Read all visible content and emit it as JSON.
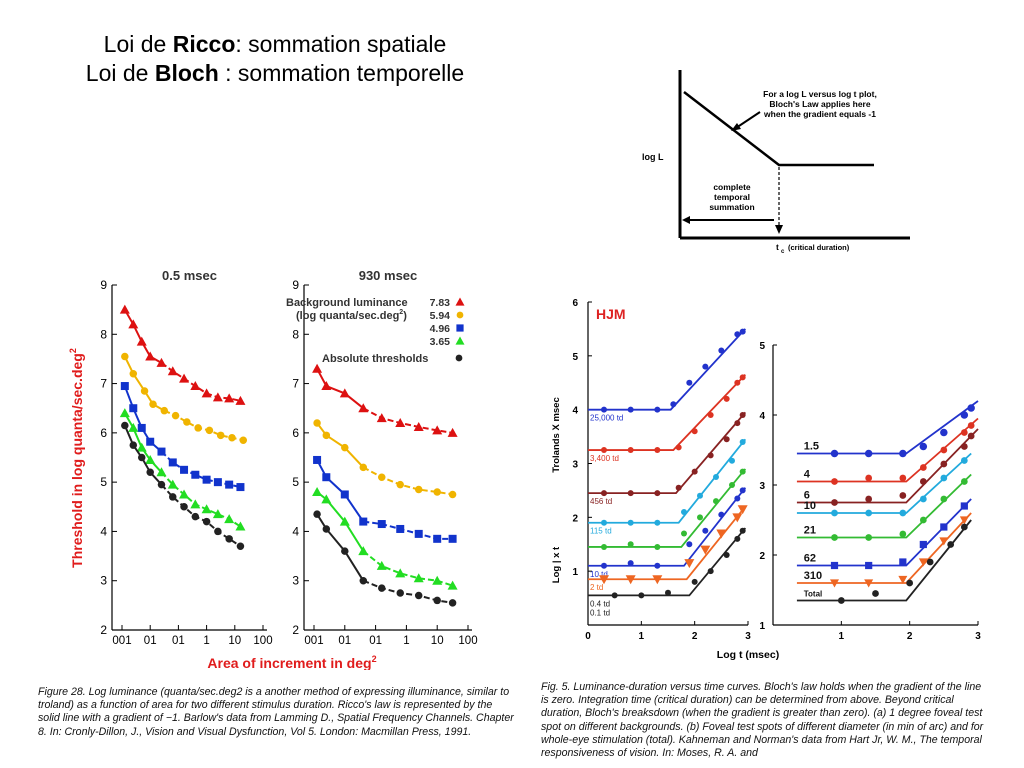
{
  "slide": {
    "title_line1": {
      "prefix": "Loi de ",
      "bold": "Ricco",
      "suffix": ": sommation spatiale"
    },
    "title_line2": {
      "prefix": "Loi de ",
      "bold": "Bloch",
      "suffix": " : sommation temporelle"
    },
    "caption_left": "Figure 28. Log luminance (quanta/sec.deg2 is a another method of expressing illuminance, similar to troland) as a function of area for two different stimulus duration. Ricco's law is represented by the solid line with a gradient of −1. Barlow's data from Lamming D., Spatial Frequency Channels. Chapter 8. In: Cronly-Dillon, J., Vision and Visual Dysfunction, Vol 5. London: Macmillan Press, 1991.",
    "caption_right": "Fig. 5. Luminance-duration versus time curves. Bloch's law holds when the gradient of the line is zero. Integration time (critical duration) can be determined from above. Beyond critical duration, Bloch's breaksdown (when the gradient is greater than zero). (a) 1 degree foveal test spot on different backgrounds. (b) Foveal test spots of different diameter (in min of arc) and for whole-eye stimulation (total). Kahneman and Norman's data from Hart Jr, W. M., The temporal responsiveness of vision. In: Moses, R. A. and"
  },
  "chart_data": [
    {
      "type": "line",
      "panel": "bloch-schematic",
      "ylabel": "log L",
      "xlabel": "t",
      "xlabel_sub": "c",
      "xlabel_note": "(critical duration)",
      "annotation_top": [
        "For a log L versus log t plot,",
        "Bloch's Law applies here",
        "when the gradient equals -1"
      ],
      "annotation_bottom": [
        "complete",
        "temporal",
        "summation"
      ],
      "series": [
        {
          "x": [
            0,
            1,
            2
          ],
          "y": [
            2,
            1,
            1
          ]
        }
      ]
    },
    {
      "type": "line",
      "panel": "ricco-0.5msec",
      "title": "0.5 msec",
      "ylabel": "Threshold in log quanta/sec.deg",
      "ylabel_sup": "2",
      "xlabel": "Area of increment in deg",
      "xlabel_sup": "2",
      "x_ticklabels": [
        "001",
        "01",
        "01",
        "1",
        "10",
        "100"
      ],
      "y_ticks": [
        2,
        3,
        4,
        5,
        6,
        7,
        8,
        9
      ],
      "ylim": [
        2,
        9
      ],
      "x_log_range": [
        -3,
        2
      ],
      "series": [
        {
          "color": "#dd1111",
          "marker": "triangle",
          "x": [
            -2.9,
            -2.6,
            -2.3,
            -2.0,
            -1.6,
            -1.2,
            -0.8,
            -0.4,
            0.0,
            0.4,
            0.8,
            1.2
          ],
          "y": [
            8.5,
            8.2,
            7.85,
            7.55,
            7.42,
            7.25,
            7.1,
            6.95,
            6.8,
            6.72,
            6.7,
            6.65
          ]
        },
        {
          "color": "#f0b400",
          "marker": "circle",
          "x": [
            -2.9,
            -2.6,
            -2.2,
            -1.9,
            -1.5,
            -1.1,
            -0.7,
            -0.3,
            0.1,
            0.5,
            0.9,
            1.3
          ],
          "y": [
            7.55,
            7.2,
            6.85,
            6.58,
            6.45,
            6.35,
            6.22,
            6.1,
            6.05,
            5.95,
            5.9,
            5.85
          ]
        },
        {
          "color": "#1133cc",
          "marker": "square",
          "x": [
            -2.9,
            -2.6,
            -2.3,
            -2.0,
            -1.6,
            -1.2,
            -0.8,
            -0.4,
            0.0,
            0.4,
            0.8,
            1.2
          ],
          "y": [
            6.95,
            6.5,
            6.1,
            5.82,
            5.62,
            5.4,
            5.25,
            5.15,
            5.05,
            5.0,
            4.95,
            4.9
          ]
        },
        {
          "color": "#22dd22",
          "marker": "triangle",
          "x": [
            -2.9,
            -2.6,
            -2.3,
            -2.0,
            -1.6,
            -1.2,
            -0.8,
            -0.4,
            0.0,
            0.4,
            0.8,
            1.2
          ],
          "y": [
            6.4,
            6.1,
            5.7,
            5.45,
            5.2,
            4.95,
            4.75,
            4.55,
            4.45,
            4.35,
            4.25,
            4.1
          ]
        },
        {
          "color": "#222222",
          "marker": "circle",
          "x": [
            -2.9,
            -2.6,
            -2.3,
            -2.0,
            -1.6,
            -1.2,
            -0.8,
            -0.4,
            0.0,
            0.4,
            0.8,
            1.2
          ],
          "y": [
            6.15,
            5.75,
            5.5,
            5.2,
            4.95,
            4.7,
            4.5,
            4.3,
            4.2,
            4.0,
            3.85,
            3.7
          ]
        }
      ]
    },
    {
      "type": "line",
      "panel": "ricco-930msec",
      "title": "930 msec",
      "x_ticklabels": [
        "001",
        "01",
        "01",
        "1",
        "10",
        "100"
      ],
      "y_ticks": [
        2,
        3,
        4,
        5,
        6,
        7,
        8,
        9
      ],
      "ylim": [
        2,
        9
      ],
      "x_log_range": [
        -3,
        2
      ],
      "legend_header": [
        "Background luminance",
        "(log quanta/sec.deg",
        ")"
      ],
      "legend_header_sup": "2",
      "legend_extra": "Absolute thresholds",
      "legend_values": [
        "7.83",
        "5.94",
        "4.96",
        "3.65"
      ],
      "series": [
        {
          "name": "7.83",
          "color": "#dd1111",
          "marker": "triangle",
          "x": [
            -2.9,
            -2.6,
            -2.0,
            -1.4,
            -0.8,
            -0.2,
            0.4,
            1.0,
            1.5
          ],
          "y": [
            7.3,
            6.95,
            6.8,
            6.5,
            6.3,
            6.2,
            6.12,
            6.05,
            6.0
          ]
        },
        {
          "name": "5.94",
          "color": "#f0b400",
          "marker": "circle",
          "x": [
            -2.9,
            -2.6,
            -2.0,
            -1.4,
            -0.8,
            -0.2,
            0.4,
            1.0,
            1.5
          ],
          "y": [
            6.2,
            5.95,
            5.7,
            5.3,
            5.1,
            4.95,
            4.85,
            4.8,
            4.75
          ]
        },
        {
          "name": "4.96",
          "color": "#1133cc",
          "marker": "square",
          "x": [
            -2.9,
            -2.6,
            -2.0,
            -1.4,
            -0.8,
            -0.2,
            0.4,
            1.0,
            1.5
          ],
          "y": [
            5.45,
            5.1,
            4.75,
            4.2,
            4.15,
            4.05,
            3.95,
            3.85,
            3.85
          ]
        },
        {
          "name": "3.65",
          "color": "#22dd22",
          "marker": "triangle",
          "x": [
            -2.9,
            -2.6,
            -2.0,
            -1.4,
            -0.8,
            -0.2,
            0.4,
            1.0,
            1.5
          ],
          "y": [
            4.8,
            4.65,
            4.2,
            3.6,
            3.3,
            3.15,
            3.05,
            3.0,
            2.9
          ]
        },
        {
          "name": "Absolute thresholds",
          "color": "#222222",
          "marker": "circle",
          "x": [
            -2.9,
            -2.6,
            -2.0,
            -1.4,
            -0.8,
            -0.2,
            0.4,
            1.0,
            1.5
          ],
          "y": [
            4.35,
            4.05,
            3.6,
            3.0,
            2.85,
            2.75,
            2.7,
            2.6,
            2.55
          ]
        }
      ]
    },
    {
      "type": "line",
      "panel": "bloch-a-HJM",
      "label": "HJM",
      "ylabel": "Trolands X msec",
      "ylabel2": "Log  | x t",
      "xlabel": "Log  t (msec)",
      "xlabel_sub": "10",
      "xlim": [
        0,
        3
      ],
      "ylim": [
        0,
        6
      ],
      "x_ticks": [
        0,
        1,
        2,
        3
      ],
      "y_ticks": [
        1,
        2,
        3,
        4,
        5,
        6
      ],
      "series": [
        {
          "name": "25,000 td",
          "color": "#2233cc",
          "x": [
            0.3,
            0.8,
            1.3,
            1.6,
            1.9,
            2.2,
            2.5,
            2.8,
            2.9
          ],
          "y": [
            4.0,
            4.0,
            4.0,
            4.1,
            4.5,
            4.8,
            5.1,
            5.4,
            5.45
          ]
        },
        {
          "name": "3,400 td",
          "color": "#dd3322",
          "x": [
            0.3,
            0.8,
            1.3,
            1.7,
            2.0,
            2.3,
            2.6,
            2.8,
            2.9
          ],
          "y": [
            3.25,
            3.25,
            3.25,
            3.3,
            3.6,
            3.9,
            4.2,
            4.5,
            4.6
          ]
        },
        {
          "name": "456 td",
          "color": "#882222",
          "x": [
            0.3,
            0.8,
            1.3,
            1.7,
            2.0,
            2.3,
            2.6,
            2.8,
            2.9
          ],
          "y": [
            2.45,
            2.45,
            2.45,
            2.55,
            2.85,
            3.15,
            3.45,
            3.75,
            3.9
          ]
        },
        {
          "name": "115 td",
          "color": "#22aadd",
          "x": [
            0.3,
            0.8,
            1.3,
            1.8,
            2.1,
            2.4,
            2.7,
            2.9
          ],
          "y": [
            1.9,
            1.9,
            1.9,
            2.1,
            2.4,
            2.75,
            3.05,
            3.4
          ]
        },
        {
          "name": "",
          "color": "#33bb33",
          "x": [
            0.3,
            0.8,
            1.3,
            1.8,
            2.1,
            2.4,
            2.7,
            2.9
          ],
          "y": [
            1.45,
            1.5,
            1.45,
            1.7,
            2.0,
            2.3,
            2.6,
            2.85
          ]
        },
        {
          "name": "10 td",
          "color": "#2233cc",
          "x": [
            0.3,
            0.8,
            1.3,
            1.9,
            2.2,
            2.5,
            2.8,
            2.9
          ],
          "y": [
            1.1,
            1.15,
            1.1,
            1.5,
            1.75,
            2.05,
            2.35,
            2.5
          ]
        },
        {
          "name": "2 td",
          "color": "#ee6622",
          "x": [
            0.3,
            0.8,
            1.3,
            1.9,
            2.2,
            2.5,
            2.8,
            2.9
          ],
          "y": [
            0.85,
            0.85,
            0.85,
            1.15,
            1.4,
            1.7,
            2.0,
            2.15
          ]
        },
        {
          "name": "0.4 td",
          "color": "#222222",
          "x": [
            0.5,
            1.0,
            1.5,
            2.0,
            2.3,
            2.6,
            2.8,
            2.9
          ],
          "y": [
            0.55,
            0.55,
            0.6,
            0.8,
            1.0,
            1.3,
            1.6,
            1.75
          ]
        }
      ],
      "extra_labels": [
        "0.1 td"
      ]
    },
    {
      "type": "line",
      "panel": "bloch-b",
      "xlim": [
        0,
        3
      ],
      "ylim": [
        1,
        5
      ],
      "x_ticks": [
        1,
        2,
        3
      ],
      "y_ticks": [
        1,
        2,
        3,
        4,
        5
      ],
      "series": [
        {
          "name": "1.5",
          "color": "#2233cc",
          "x": [
            0.9,
            1.4,
            1.9,
            2.2,
            2.5,
            2.8,
            2.9
          ],
          "y": [
            3.45,
            3.45,
            3.45,
            3.55,
            3.75,
            4.0,
            4.1
          ]
        },
        {
          "name": "4",
          "color": "#dd3322",
          "x": [
            0.9,
            1.4,
            1.9,
            2.2,
            2.5,
            2.8,
            2.9
          ],
          "y": [
            3.05,
            3.1,
            3.1,
            3.25,
            3.5,
            3.75,
            3.85
          ]
        },
        {
          "name": "6",
          "color": "#882222",
          "x": [
            0.9,
            1.4,
            1.9,
            2.2,
            2.5,
            2.8,
            2.9
          ],
          "y": [
            2.75,
            2.8,
            2.85,
            3.05,
            3.3,
            3.55,
            3.7
          ]
        },
        {
          "name": "10",
          "color": "#22aadd",
          "x": [
            0.9,
            1.4,
            1.9,
            2.2,
            2.5,
            2.8
          ],
          "y": [
            2.6,
            2.6,
            2.6,
            2.8,
            3.1,
            3.35
          ]
        },
        {
          "name": "21",
          "color": "#33bb33",
          "x": [
            0.9,
            1.4,
            1.9,
            2.2,
            2.5,
            2.8
          ],
          "y": [
            2.25,
            2.25,
            2.3,
            2.5,
            2.8,
            3.05
          ]
        },
        {
          "name": "62",
          "color": "#2233cc",
          "x": [
            0.9,
            1.4,
            1.9,
            2.2,
            2.5,
            2.8
          ],
          "y": [
            1.85,
            1.85,
            1.9,
            2.15,
            2.4,
            2.7
          ]
        },
        {
          "name": "310",
          "color": "#ee6622",
          "x": [
            0.9,
            1.4,
            1.9,
            2.2,
            2.5,
            2.8
          ],
          "y": [
            1.6,
            1.6,
            1.65,
            1.9,
            2.2,
            2.5
          ]
        },
        {
          "name": "Total",
          "color": "#222222",
          "x": [
            1.0,
            1.5,
            2.0,
            2.3,
            2.6,
            2.8
          ],
          "y": [
            1.35,
            1.45,
            1.6,
            1.9,
            2.15,
            2.4
          ]
        }
      ]
    }
  ]
}
